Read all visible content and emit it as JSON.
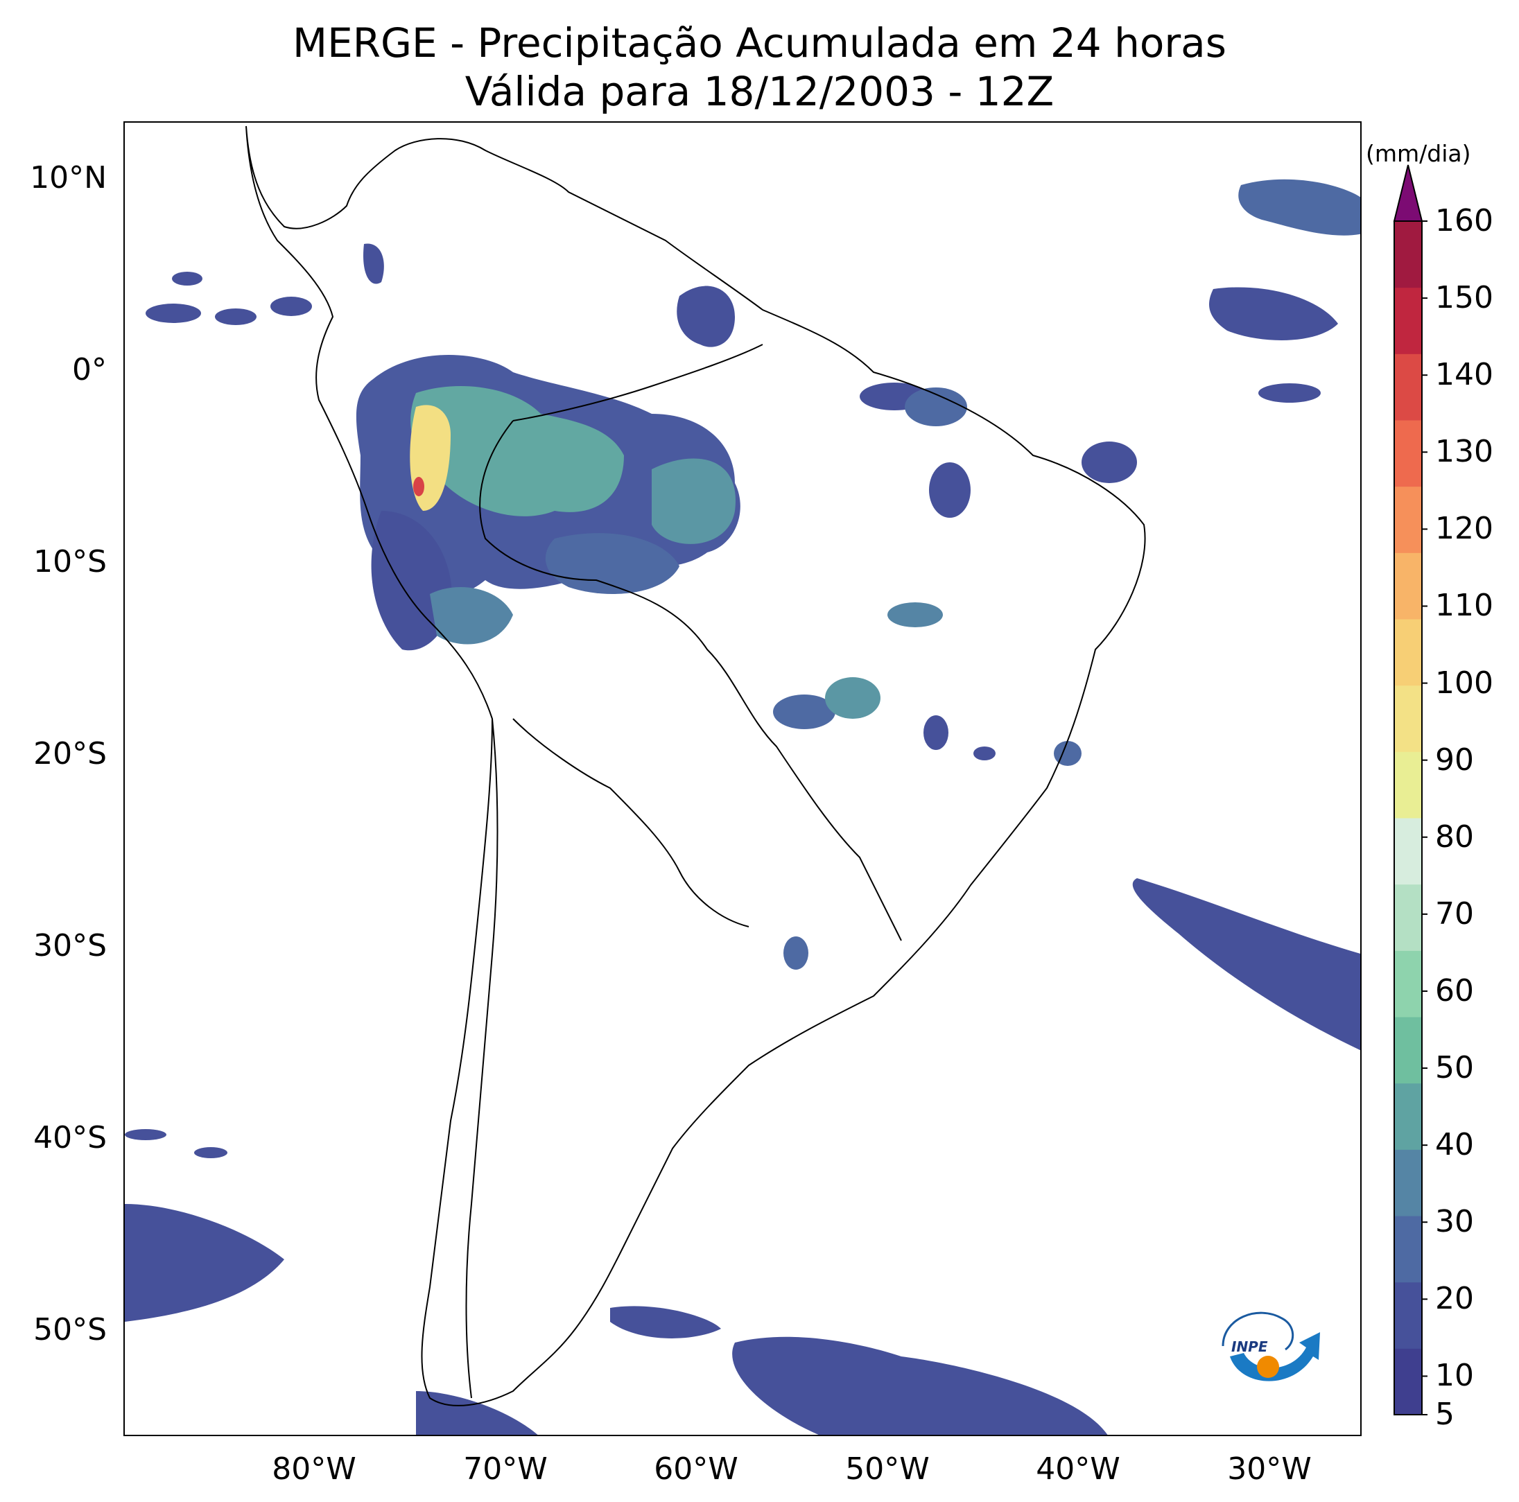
{
  "title": {
    "line1": "MERGE - Precipitação Acumulada em 24 horas",
    "line2": "Válida para 18/12/2003 - 12Z"
  },
  "map": {
    "lon_range": [
      -90,
      -25
    ],
    "lat_range": [
      -55,
      13
    ],
    "lat_ticks": [
      "10°N",
      "0°",
      "10°S",
      "20°S",
      "30°S",
      "40°S",
      "50°S"
    ],
    "lon_ticks": [
      "80°W",
      "70°W",
      "60°W",
      "50°W",
      "40°W",
      "30°W"
    ]
  },
  "colorbar": {
    "units": "(mm/dia)",
    "ticks": [
      "5",
      "10",
      "20",
      "30",
      "40",
      "50",
      "60",
      "70",
      "80",
      "90",
      "100",
      "110",
      "120",
      "130",
      "140",
      "150",
      "160"
    ],
    "extend": "max",
    "colors": [
      "#3f3f8f",
      "#46519a",
      "#4e6aa3",
      "#5585a5",
      "#5fa3a2",
      "#6fbf9f",
      "#8ed3ad",
      "#b4e0c4",
      "#d7edde",
      "#e9ee94",
      "#f3e186",
      "#f7cf75",
      "#f8b468",
      "#f6905a",
      "#ee6a4e",
      "#dc4a45",
      "#c0263f",
      "#a01a40"
    ],
    "extend_color": "#7c0b73"
  },
  "logo": {
    "text": "INPE"
  }
}
